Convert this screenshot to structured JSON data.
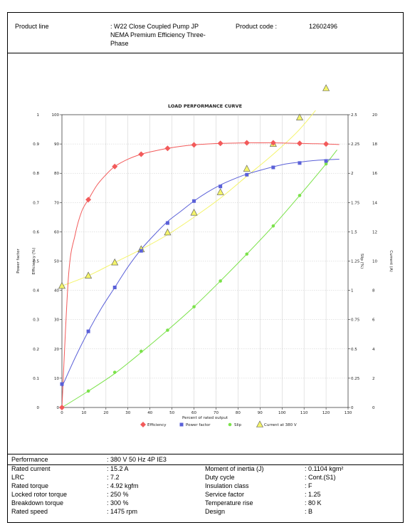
{
  "header": {
    "product_line_label": "Product line",
    "product_line_value_1": ": W22 Close Coupled Pump JP",
    "product_line_value_2": "NEMA Premium Efficiency Three-",
    "product_line_value_3": "Phase",
    "product_code_label": "Product code :",
    "product_code_value": "12602496"
  },
  "chart_data": {
    "type": "line",
    "title": "LOAD PERFORMANCE CURVE",
    "xlabel": "Percent of rated output",
    "xlim": [
      0,
      130
    ],
    "x_ticks": [
      "0",
      "10",
      "20",
      "30",
      "40",
      "50",
      "60",
      "70",
      "80",
      "90",
      "100",
      "110",
      "120",
      "130"
    ],
    "left_axes": [
      {
        "label": "Power factor",
        "ticks": [
          "0",
          "0.1",
          "0.2",
          "0.3",
          "0.4",
          "0.5",
          "0.6",
          "0.7",
          "0.8",
          "0.9",
          "1"
        ],
        "range": [
          0,
          1
        ]
      },
      {
        "label": "Efficiency (%)",
        "ticks": [
          "0",
          "10",
          "20",
          "30",
          "40",
          "50",
          "60",
          "70",
          "80",
          "90",
          "100"
        ],
        "range": [
          0,
          100
        ]
      }
    ],
    "right_axes": [
      {
        "label": "Slip (%)",
        "ticks": [
          "0",
          "0.25",
          "0.5",
          "0.75",
          "1",
          "1.25",
          "1.5",
          "1.75",
          "2",
          "2.25",
          "2.5"
        ],
        "range": [
          0,
          2.5
        ]
      },
      {
        "label": "Current (A)",
        "ticks": [
          "0",
          "2",
          "4",
          "6",
          "8",
          "10",
          "12",
          "14",
          "16",
          "18",
          "20"
        ],
        "range": [
          0,
          20
        ]
      }
    ],
    "grid": true,
    "legend_position": "bottom",
    "series": [
      {
        "name": "Efficiency",
        "color": "#f25a5a",
        "marker": "diamond",
        "curve": [
          [
            0,
            0
          ],
          [
            3,
            45
          ],
          [
            6,
            59
          ],
          [
            9,
            67
          ],
          [
            12,
            71
          ],
          [
            16,
            76
          ],
          [
            20,
            79.5
          ],
          [
            24,
            82.3
          ],
          [
            30,
            84.8
          ],
          [
            36,
            86.5
          ],
          [
            42,
            87.6
          ],
          [
            48,
            88.5
          ],
          [
            54,
            89.2
          ],
          [
            60,
            89.7
          ],
          [
            66,
            90
          ],
          [
            72,
            90.2
          ],
          [
            78,
            90.3
          ],
          [
            84,
            90.4
          ],
          [
            90,
            90.4
          ],
          [
            96,
            90.4
          ],
          [
            102,
            90.3
          ],
          [
            108,
            90.2
          ],
          [
            114,
            90.1
          ],
          [
            120,
            90
          ],
          [
            126,
            89.8
          ]
        ],
        "markers": [
          [
            0,
            0
          ],
          [
            12,
            71
          ],
          [
            24,
            82.3
          ],
          [
            36,
            86.5
          ],
          [
            48,
            88.5
          ],
          [
            60,
            89.7
          ],
          [
            72,
            90.2
          ],
          [
            84,
            90.4
          ],
          [
            96,
            90.4
          ],
          [
            108,
            90.2
          ],
          [
            120,
            90
          ]
        ]
      },
      {
        "name": "Power factor",
        "color": "#5a60d8",
        "marker": "square",
        "curve": [
          [
            0,
            0.07
          ],
          [
            6,
            0.17
          ],
          [
            12,
            0.26
          ],
          [
            18,
            0.34
          ],
          [
            24,
            0.41
          ],
          [
            30,
            0.48
          ],
          [
            36,
            0.54
          ],
          [
            42,
            0.59
          ],
          [
            48,
            0.635
          ],
          [
            54,
            0.67
          ],
          [
            60,
            0.705
          ],
          [
            66,
            0.735
          ],
          [
            72,
            0.76
          ],
          [
            78,
            0.78
          ],
          [
            84,
            0.797
          ],
          [
            90,
            0.81
          ],
          [
            96,
            0.822
          ],
          [
            102,
            0.832
          ],
          [
            108,
            0.838
          ],
          [
            114,
            0.843
          ],
          [
            120,
            0.846
          ],
          [
            126,
            0.848
          ]
        ],
        "markers": [
          [
            0,
            0.08
          ],
          [
            12,
            0.26
          ],
          [
            24,
            0.41
          ],
          [
            36,
            0.535
          ],
          [
            48,
            0.63
          ],
          [
            60,
            0.705
          ],
          [
            72,
            0.755
          ],
          [
            84,
            0.795
          ],
          [
            96,
            0.82
          ],
          [
            108,
            0.835
          ],
          [
            120,
            0.842
          ]
        ]
      },
      {
        "name": "Slip",
        "color": "#7be24a",
        "marker": "circle",
        "curve": [
          [
            0,
            0
          ],
          [
            12,
            0.14
          ],
          [
            24,
            0.29
          ],
          [
            36,
            0.47
          ],
          [
            48,
            0.66
          ],
          [
            60,
            0.86
          ],
          [
            72,
            1.08
          ],
          [
            84,
            1.31
          ],
          [
            96,
            1.55
          ],
          [
            108,
            1.81
          ],
          [
            120,
            2.08
          ],
          [
            125,
            2.2
          ]
        ],
        "markers": [
          [
            0,
            0
          ],
          [
            12,
            0.14
          ],
          [
            24,
            0.3
          ],
          [
            36,
            0.48
          ],
          [
            48,
            0.66
          ],
          [
            60,
            0.86
          ],
          [
            72,
            1.08
          ],
          [
            84,
            1.31
          ],
          [
            96,
            1.55
          ],
          [
            108,
            1.81
          ],
          [
            120,
            2.08
          ]
        ]
      },
      {
        "name": "Current at 380 V",
        "color": "#f4f46a",
        "marker": "triangle",
        "curve": [
          [
            0,
            8.3
          ],
          [
            12,
            9
          ],
          [
            24,
            9.9
          ],
          [
            36,
            10.8
          ],
          [
            48,
            11.8
          ],
          [
            60,
            13
          ],
          [
            72,
            14.3
          ],
          [
            84,
            15.8
          ],
          [
            96,
            17.3
          ],
          [
            108,
            19
          ],
          [
            120,
            21.2
          ],
          [
            126,
            22.4
          ]
        ],
        "markers": [
          [
            0,
            8.3
          ],
          [
            12,
            9
          ],
          [
            24,
            9.9
          ],
          [
            36,
            10.8
          ],
          [
            48,
            11.95
          ],
          [
            60,
            13.3
          ],
          [
            72,
            14.7
          ],
          [
            84,
            16.3
          ],
          [
            96,
            18
          ],
          [
            108,
            19.8
          ],
          [
            120,
            21.8
          ]
        ]
      }
    ]
  },
  "performance": {
    "label": "Performance",
    "value": ": 380 V 50 Hz 4P IE3"
  },
  "specs_left": [
    {
      "label": "Rated current",
      "value": ": 15.2 A"
    },
    {
      "label": "LRC",
      "value": ": 7.2"
    },
    {
      "label": "Rated torque",
      "value": ": 4.92 kgfm"
    },
    {
      "label": "Locked rotor torque",
      "value": ": 250 %"
    },
    {
      "label": "Breakdown torque",
      "value": ": 300 %"
    },
    {
      "label": "Rated speed",
      "value": ": 1475 rpm"
    }
  ],
  "specs_right": [
    {
      "label": "Moment of inertia (J)",
      "value": ": 0.1104 kgm²"
    },
    {
      "label": "Duty cycle",
      "value": ": Cont.(S1)"
    },
    {
      "label": "Insulation class",
      "value": ": F"
    },
    {
      "label": "Service factor",
      "value": ": 1.25"
    },
    {
      "label": "Temperature rise",
      "value": ": 80 K"
    },
    {
      "label": "Design",
      "value": ": B"
    }
  ]
}
